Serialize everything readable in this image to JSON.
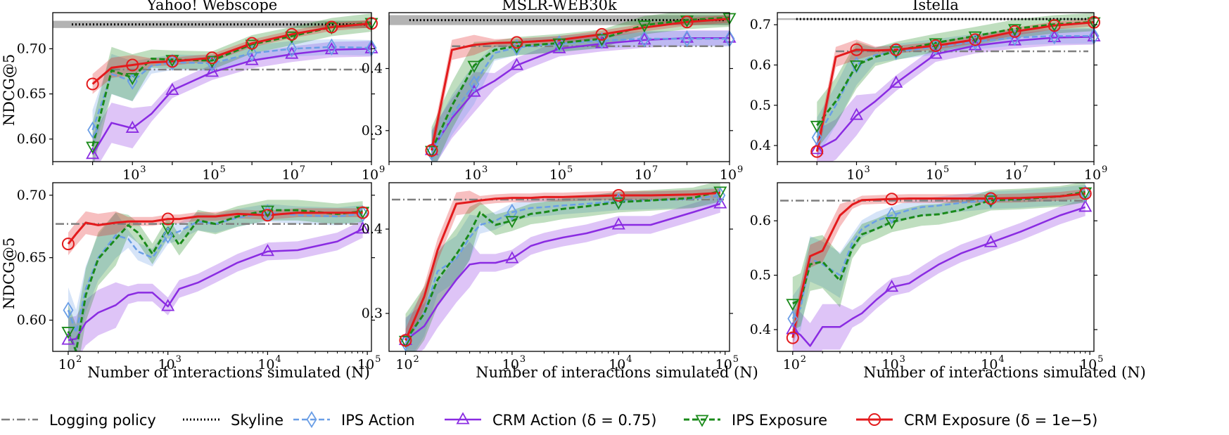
{
  "xlabel": "Number of interactions simulated (N)",
  "ylabel": "NDCG@5",
  "colors": {
    "logging": "#7f7f7f",
    "skyline": "#000000",
    "ips_action": "#6a9ee6",
    "crm_action": "#8a2be2",
    "ips_exposure": "#1a8a1a",
    "crm_exposure": "#e31a1c"
  },
  "legend": [
    {
      "key": "logging",
      "label": "Logging policy",
      "style": "dashdot",
      "marker": "none"
    },
    {
      "key": "skyline",
      "label": "Skyline",
      "style": "dotted",
      "marker": "none"
    },
    {
      "key": "ips_action",
      "label": "IPS Action",
      "style": "dashed",
      "marker": "diamond"
    },
    {
      "key": "crm_action",
      "label": "CRM Action (δ = 0.75)",
      "style": "solid",
      "marker": "triangle-up"
    },
    {
      "key": "ips_exposure",
      "label": "IPS Exposure",
      "style": "dashed",
      "marker": "triangle-down"
    },
    {
      "key": "crm_exposure",
      "label": "CRM Exposure (δ = 1e−5)",
      "style": "solid",
      "marker": "circle"
    }
  ],
  "chart_data": [
    {
      "type": "line",
      "title": "Yahoo! Webscope",
      "xscale": "log",
      "xlim": [
        10,
        1000000000
      ],
      "ylim": [
        0.575,
        0.74
      ],
      "xticks": [
        {
          "v": 1000,
          "e": "3"
        },
        {
          "v": 100000,
          "e": "5"
        },
        {
          "v": 10000000,
          "e": "7"
        },
        {
          "v": 1000000000,
          "e": "9"
        }
      ],
      "yticks": [
        {
          "v": 0.6,
          "t": "0.60"
        },
        {
          "v": 0.65,
          "t": "0.65"
        },
        {
          "v": 0.7,
          "t": "0.70"
        }
      ],
      "logging": 0.677,
      "skyline": 0.727,
      "skyline_band": [
        0.723,
        0.731
      ],
      "x": [
        100,
        300,
        1000,
        3000,
        10000,
        100000,
        1000000,
        10000000,
        100000000,
        1000000000
      ],
      "series": {
        "crm_exposure": [
          0.661,
          0.679,
          0.682,
          0.685,
          0.686,
          0.69,
          0.706,
          0.716,
          0.724,
          0.728
        ],
        "ips_exposure": [
          0.592,
          0.676,
          0.668,
          0.689,
          0.688,
          0.687,
          0.705,
          0.714,
          0.724,
          0.729
        ],
        "ips_action": [
          0.61,
          0.672,
          0.664,
          0.681,
          0.685,
          0.684,
          0.695,
          0.7,
          0.702,
          0.701
        ],
        "crm_action": [
          0.583,
          0.618,
          0.612,
          0.628,
          0.654,
          0.674,
          0.687,
          0.694,
          0.699,
          0.7
        ]
      },
      "markers": {
        "crm_exposure": [
          100,
          1000,
          10000,
          100000,
          1000000,
          10000000,
          100000000,
          1000000000
        ],
        "ips_exposure": [
          100,
          1000,
          10000,
          100000,
          1000000,
          10000000,
          100000000,
          1000000000
        ],
        "ips_action": [
          100,
          1000,
          10000,
          100000,
          1000000,
          10000000,
          100000000,
          1000000000
        ],
        "crm_action": [
          100,
          1000,
          10000,
          100000,
          1000000,
          10000000,
          100000000,
          1000000000
        ]
      }
    },
    {
      "type": "line",
      "title": "MSLR-WEB30k",
      "xscale": "log",
      "xlim": [
        10,
        1000000000
      ],
      "ylim": [
        0.25,
        0.49
      ],
      "xticks": [
        {
          "v": 1000,
          "e": "3"
        },
        {
          "v": 100000,
          "e": "5"
        },
        {
          "v": 10000000,
          "e": "7"
        },
        {
          "v": 1000000000,
          "e": "9"
        }
      ],
      "yticks": [
        {
          "v": 0.3,
          "t": "0.3"
        },
        {
          "v": 0.4,
          "t": "0.4"
        }
      ],
      "logging": 0.436,
      "skyline": 0.478,
      "skyline_band": [
        0.47,
        0.486
      ],
      "x": [
        100,
        300,
        1000,
        3000,
        10000,
        100000,
        1000000,
        10000000,
        100000000,
        1000000000
      ],
      "series": {
        "crm_exposure": [
          0.268,
          0.43,
          0.438,
          0.441,
          0.442,
          0.446,
          0.455,
          0.466,
          0.475,
          0.48
        ],
        "ips_exposure": [
          0.268,
          0.34,
          0.405,
          0.43,
          0.436,
          0.441,
          0.448,
          0.47,
          0.478,
          0.482
        ],
        "ips_action": [
          0.265,
          0.325,
          0.375,
          0.425,
          0.434,
          0.44,
          0.445,
          0.448,
          0.448,
          0.448
        ],
        "crm_action": [
          0.268,
          0.32,
          0.362,
          0.38,
          0.405,
          0.432,
          0.44,
          0.446,
          0.449,
          0.449
        ]
      },
      "markers": {
        "crm_exposure": [
          100,
          10000,
          1000000,
          100000000
        ],
        "ips_exposure": [
          100,
          1000,
          10000,
          100000,
          1000000,
          10000000,
          100000000,
          1000000000
        ],
        "ips_action": [
          100,
          1000,
          10000,
          100000,
          1000000,
          10000000,
          100000000,
          1000000000
        ],
        "crm_action": [
          100,
          1000,
          10000,
          100000,
          1000000,
          10000000,
          100000000,
          1000000000
        ]
      }
    },
    {
      "type": "line",
      "title": "Istella",
      "xscale": "log",
      "xlim": [
        10,
        1000000000
      ],
      "ylim": [
        0.36,
        0.73
      ],
      "xticks": [
        {
          "v": 1000,
          "e": "3"
        },
        {
          "v": 100000,
          "e": "5"
        },
        {
          "v": 10000000,
          "e": "7"
        },
        {
          "v": 1000000000,
          "e": "9"
        }
      ],
      "yticks": [
        {
          "v": 0.4,
          "t": "0.4"
        },
        {
          "v": 0.5,
          "t": "0.5"
        },
        {
          "v": 0.6,
          "t": "0.6"
        },
        {
          "v": 0.7,
          "t": "0.7"
        }
      ],
      "logging": 0.634,
      "skyline": 0.714,
      "skyline_band": [
        0.712,
        0.716
      ],
      "x": [
        100,
        300,
        1000,
        3000,
        10000,
        100000,
        1000000,
        10000000,
        100000000,
        1000000000
      ],
      "series": {
        "crm_exposure": [
          0.385,
          0.62,
          0.638,
          0.636,
          0.638,
          0.648,
          0.663,
          0.683,
          0.698,
          0.706
        ],
        "ips_exposure": [
          0.45,
          0.51,
          0.6,
          0.62,
          0.635,
          0.655,
          0.672,
          0.69,
          0.701,
          0.707
        ],
        "ips_action": [
          0.42,
          0.5,
          0.6,
          0.625,
          0.633,
          0.645,
          0.658,
          0.668,
          0.672,
          0.672
        ],
        "crm_action": [
          0.39,
          0.415,
          0.475,
          0.51,
          0.555,
          0.627,
          0.648,
          0.66,
          0.668,
          0.67
        ]
      },
      "markers": {
        "crm_exposure": [
          100,
          1000,
          10000,
          100000,
          1000000,
          10000000,
          100000000,
          1000000000
        ],
        "ips_exposure": [
          100,
          1000,
          10000,
          100000,
          1000000,
          10000000,
          100000000,
          1000000000
        ],
        "ips_action": [
          100,
          1000,
          10000,
          100000,
          1000000,
          10000000,
          100000000,
          1000000000
        ],
        "crm_action": [
          100,
          1000,
          10000,
          100000,
          1000000,
          10000000,
          100000000,
          1000000000
        ]
      }
    },
    {
      "type": "line",
      "title": "",
      "xscale": "log",
      "xlim": [
        70,
        110000
      ],
      "ylim": [
        0.575,
        0.71
      ],
      "xticks": [
        {
          "v": 100,
          "e": "2"
        },
        {
          "v": 1000,
          "e": "3"
        },
        {
          "v": 10000,
          "e": "4"
        },
        {
          "v": 100000,
          "e": "5"
        }
      ],
      "yticks": [
        {
          "v": 0.6,
          "t": "0.60"
        },
        {
          "v": 0.65,
          "t": "0.65"
        },
        {
          "v": 0.7,
          "t": "0.70"
        }
      ],
      "logging": 0.677,
      "x": [
        100,
        120,
        150,
        200,
        300,
        400,
        500,
        700,
        1000,
        1300,
        2000,
        3000,
        5000,
        10000,
        20000,
        50000,
        90000
      ],
      "series": {
        "crm_exposure": [
          0.661,
          0.669,
          0.678,
          0.676,
          0.678,
          0.679,
          0.679,
          0.679,
          0.681,
          0.681,
          0.683,
          0.683,
          0.685,
          0.684,
          0.686,
          0.686,
          0.686
        ],
        "ips_exposure": [
          0.591,
          0.575,
          0.62,
          0.649,
          0.665,
          0.676,
          0.67,
          0.653,
          0.674,
          0.66,
          0.68,
          0.677,
          0.683,
          0.688,
          0.688,
          0.685,
          0.687
        ],
        "ips_action": [
          0.608,
          0.59,
          0.625,
          0.65,
          0.668,
          0.665,
          0.655,
          0.65,
          0.668,
          0.671,
          0.679,
          0.677,
          0.682,
          0.686,
          0.684,
          0.683,
          0.685
        ],
        "crm_action": [
          0.584,
          0.585,
          0.598,
          0.606,
          0.612,
          0.62,
          0.622,
          0.622,
          0.611,
          0.625,
          0.63,
          0.637,
          0.646,
          0.655,
          0.656,
          0.663,
          0.673
        ]
      },
      "markers": {
        "crm_exposure": [
          100,
          1000,
          10000,
          90000
        ],
        "ips_exposure": [
          100,
          1000,
          10000,
          90000
        ],
        "ips_action": [
          100,
          1000,
          10000,
          90000
        ],
        "crm_action": [
          100,
          1000,
          10000,
          90000
        ]
      }
    },
    {
      "type": "line",
      "title": "",
      "xscale": "log",
      "xlim": [
        70,
        110000
      ],
      "ylim": [
        0.255,
        0.455
      ],
      "xticks": [
        {
          "v": 100,
          "e": "2"
        },
        {
          "v": 1000,
          "e": "3"
        },
        {
          "v": 10000,
          "e": "4"
        },
        {
          "v": 100000,
          "e": "5"
        }
      ],
      "yticks": [
        {
          "v": 0.3,
          "t": "0.3"
        },
        {
          "v": 0.4,
          "t": "0.4"
        }
      ],
      "logging": 0.435,
      "x": [
        100,
        150,
        200,
        300,
        400,
        500,
        700,
        1000,
        1500,
        2000,
        3000,
        5000,
        10000,
        20000,
        50000,
        90000
      ],
      "series": {
        "crm_exposure": [
          0.268,
          0.32,
          0.375,
          0.43,
          0.432,
          0.434,
          0.436,
          0.437,
          0.437,
          0.438,
          0.438,
          0.439,
          0.44,
          0.44,
          0.441,
          0.443
        ],
        "ips_exposure": [
          0.268,
          0.3,
          0.34,
          0.37,
          0.395,
          0.42,
          0.405,
          0.41,
          0.418,
          0.42,
          0.424,
          0.427,
          0.432,
          0.434,
          0.437,
          0.445
        ],
        "ips_action": [
          0.265,
          0.3,
          0.35,
          0.365,
          0.39,
          0.405,
          0.41,
          0.42,
          0.425,
          0.426,
          0.428,
          0.43,
          0.433,
          0.434,
          0.436,
          0.44
        ],
        "crm_action": [
          0.268,
          0.285,
          0.31,
          0.34,
          0.358,
          0.36,
          0.36,
          0.365,
          0.38,
          0.385,
          0.39,
          0.395,
          0.405,
          0.405,
          0.42,
          0.43
        ]
      },
      "markers": {
        "crm_exposure": [
          100,
          10000
        ],
        "ips_exposure": [
          100,
          1000,
          10000,
          90000
        ],
        "ips_action": [
          100,
          1000,
          10000,
          90000
        ],
        "crm_action": [
          100,
          1000,
          10000,
          90000
        ]
      }
    },
    {
      "type": "line",
      "title": "",
      "xscale": "log",
      "xlim": [
        70,
        110000
      ],
      "ylim": [
        0.36,
        0.67
      ],
      "xticks": [
        {
          "v": 100,
          "e": "2"
        },
        {
          "v": 1000,
          "e": "3"
        },
        {
          "v": 10000,
          "e": "4"
        },
        {
          "v": 100000,
          "e": "5"
        }
      ],
      "yticks": [
        {
          "v": 0.4,
          "t": "0.4"
        },
        {
          "v": 0.5,
          "t": "0.5"
        },
        {
          "v": 0.6,
          "t": "0.6"
        }
      ],
      "logging": 0.637,
      "x": [
        100,
        120,
        150,
        200,
        300,
        400,
        500,
        700,
        1000,
        1500,
        2000,
        3000,
        5000,
        10000,
        20000,
        50000,
        90000
      ],
      "series": {
        "crm_exposure": [
          0.385,
          0.46,
          0.535,
          0.545,
          0.61,
          0.63,
          0.638,
          0.639,
          0.64,
          0.641,
          0.641,
          0.641,
          0.641,
          0.641,
          0.642,
          0.645,
          0.65
        ],
        "ips_exposure": [
          0.448,
          0.455,
          0.52,
          0.525,
          0.49,
          0.55,
          0.575,
          0.585,
          0.598,
          0.605,
          0.61,
          0.612,
          0.62,
          0.638,
          0.64,
          0.645,
          0.653
        ],
        "ips_action": [
          0.42,
          0.44,
          0.53,
          0.52,
          0.5,
          0.56,
          0.585,
          0.6,
          0.61,
          0.62,
          0.625,
          0.628,
          0.633,
          0.638,
          0.64,
          0.645,
          0.65
        ],
        "crm_action": [
          0.4,
          0.39,
          0.37,
          0.405,
          0.405,
          0.42,
          0.43,
          0.455,
          0.478,
          0.485,
          0.5,
          0.52,
          0.54,
          0.56,
          0.58,
          0.61,
          0.625
        ]
      },
      "markers": {
        "crm_exposure": [
          100,
          1000,
          10000,
          90000
        ],
        "ips_exposure": [
          100,
          1000,
          10000,
          90000
        ],
        "ips_action": [
          100,
          1000,
          10000,
          90000
        ],
        "crm_action": [
          100,
          1000,
          10000,
          90000
        ]
      }
    }
  ]
}
